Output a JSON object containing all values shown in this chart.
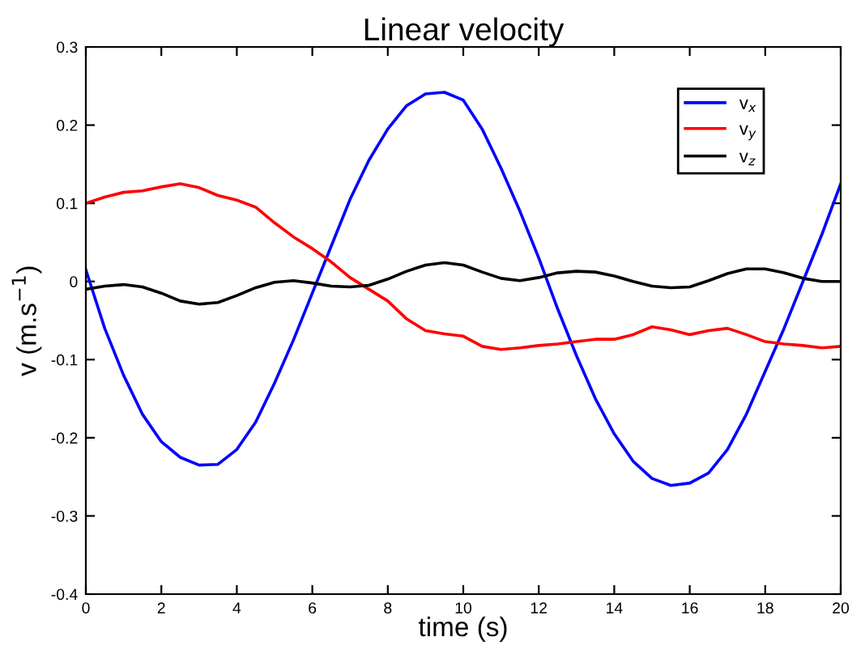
{
  "chart_data": {
    "type": "line",
    "title": "Linear velocity",
    "xlabel": "time (s)",
    "ylabel": "v (m.s$^{−1}$)",
    "x": [
      0,
      0.5,
      1,
      1.5,
      2,
      2.5,
      3,
      3.5,
      4,
      4.5,
      5,
      5.5,
      6,
      6.5,
      7,
      7.5,
      8,
      8.5,
      9,
      9.5,
      10,
      10.5,
      11,
      11.5,
      12,
      12.5,
      13,
      13.5,
      14,
      14.5,
      15,
      15.5,
      16,
      16.5,
      17,
      17.5,
      18,
      18.5,
      19,
      19.5,
      20
    ],
    "series": [
      {
        "name": "v$_{x}$",
        "color": "#0000ff",
        "values": [
          0.015,
          -0.06,
          -0.12,
          -0.17,
          -0.205,
          -0.225,
          -0.235,
          -0.234,
          -0.215,
          -0.18,
          -0.13,
          -0.075,
          -0.015,
          0.045,
          0.105,
          0.155,
          0.195,
          0.225,
          0.24,
          0.242,
          0.232,
          0.195,
          0.145,
          0.09,
          0.03,
          -0.035,
          -0.095,
          -0.15,
          -0.195,
          -0.23,
          -0.252,
          -0.261,
          -0.258,
          -0.245,
          -0.215,
          -0.17,
          -0.115,
          -0.06,
          0.0,
          0.06,
          0.125
        ]
      },
      {
        "name": "v$_{y}$",
        "color": "#ff0000",
        "values": [
          0.1,
          0.108,
          0.114,
          0.116,
          0.121,
          0.125,
          0.12,
          0.11,
          0.104,
          0.095,
          0.075,
          0.057,
          0.042,
          0.025,
          0.005,
          -0.01,
          -0.025,
          -0.048,
          -0.063,
          -0.067,
          -0.07,
          -0.083,
          -0.087,
          -0.085,
          -0.082,
          -0.08,
          -0.077,
          -0.074,
          -0.074,
          -0.068,
          -0.058,
          -0.062,
          -0.068,
          -0.063,
          -0.06,
          -0.068,
          -0.077,
          -0.08,
          -0.082,
          -0.085,
          -0.083
        ]
      },
      {
        "name": "v$_{z}$",
        "color": "#000000",
        "values": [
          -0.01,
          -0.006,
          -0.004,
          -0.007,
          -0.015,
          -0.025,
          -0.029,
          -0.027,
          -0.018,
          -0.008,
          -0.001,
          0.001,
          -0.002,
          -0.006,
          -0.007,
          -0.005,
          0.003,
          0.013,
          0.021,
          0.024,
          0.021,
          0.012,
          0.004,
          0.001,
          0.005,
          0.011,
          0.013,
          0.012,
          0.007,
          0.0,
          -0.006,
          -0.008,
          -0.007,
          0.001,
          0.01,
          0.016,
          0.016,
          0.011,
          0.004,
          0.0,
          0.0
        ]
      }
    ],
    "xlim": [
      0,
      20
    ],
    "xticks": [
      0,
      2,
      4,
      6,
      8,
      10,
      12,
      14,
      16,
      18,
      20
    ],
    "ylim": [
      -0.4,
      0.3
    ],
    "yticks": [
      -0.4,
      -0.3,
      -0.2,
      -0.1,
      0,
      0.1,
      0.2,
      0.3
    ],
    "grid": false,
    "legend": "top right",
    "marker": "none",
    "line_style": "solid"
  }
}
